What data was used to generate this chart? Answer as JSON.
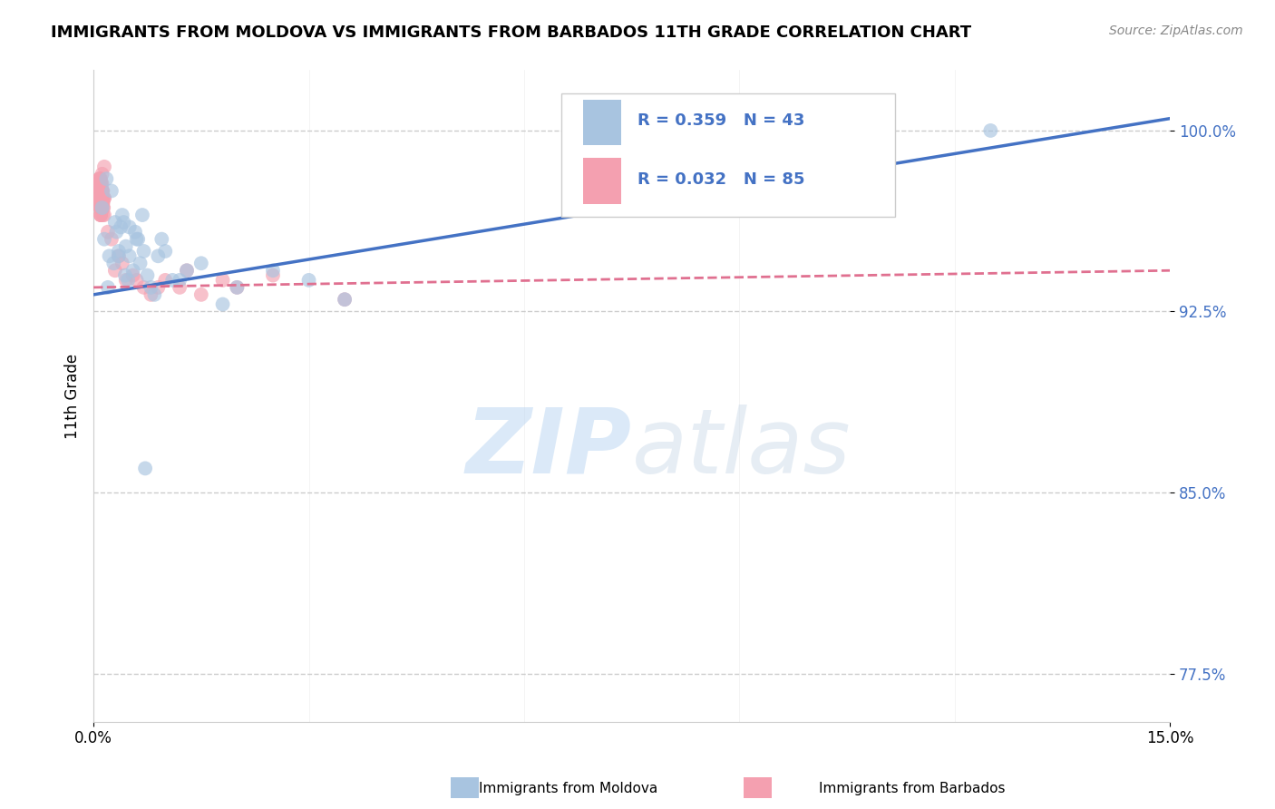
{
  "title": "IMMIGRANTS FROM MOLDOVA VS IMMIGRANTS FROM BARBADOS 11TH GRADE CORRELATION CHART",
  "source": "Source: ZipAtlas.com",
  "ylabel": "11th Grade",
  "xlim": [
    0.0,
    15.0
  ],
  "ylim": [
    75.5,
    102.5
  ],
  "yticks": [
    77.5,
    85.0,
    92.5,
    100.0
  ],
  "ytick_labels": [
    "77.5%",
    "85.0%",
    "92.5%",
    "100.0%"
  ],
  "color_moldova": "#a8c4e0",
  "color_barbados": "#f4a0b0",
  "color_moldova_line": "#4472c4",
  "color_barbados_line": "#e07090",
  "color_legend_text": "#4472c4",
  "moldova_x": [
    0.15,
    0.25,
    0.18,
    0.3,
    0.22,
    0.35,
    0.12,
    0.28,
    0.32,
    0.2,
    0.4,
    0.45,
    0.5,
    0.38,
    0.55,
    0.6,
    0.48,
    0.65,
    0.7,
    0.42,
    0.75,
    0.58,
    0.85,
    0.9,
    0.68,
    1.0,
    1.2,
    1.5,
    1.8,
    0.95,
    2.0,
    2.5,
    3.5,
    0.35,
    0.5,
    0.8,
    1.3,
    3.0,
    12.5,
    0.62,
    0.44,
    1.1,
    0.72
  ],
  "moldova_y": [
    95.5,
    97.5,
    98.0,
    96.2,
    94.8,
    95.0,
    96.8,
    94.5,
    95.8,
    93.5,
    96.5,
    95.2,
    94.8,
    96.0,
    94.2,
    95.5,
    93.8,
    94.5,
    95.0,
    96.2,
    94.0,
    95.8,
    93.2,
    94.8,
    96.5,
    95.0,
    93.8,
    94.5,
    92.8,
    95.5,
    93.5,
    94.2,
    93.0,
    94.8,
    96.0,
    93.5,
    94.2,
    93.8,
    100.0,
    95.5,
    94.0,
    93.8,
    86.0
  ],
  "barbados_x": [
    0.08,
    0.12,
    0.1,
    0.15,
    0.09,
    0.11,
    0.13,
    0.1,
    0.08,
    0.12,
    0.14,
    0.1,
    0.11,
    0.09,
    0.12,
    0.1,
    0.08,
    0.13,
    0.1,
    0.12,
    0.15,
    0.1,
    0.09,
    0.11,
    0.1,
    0.12,
    0.08,
    0.13,
    0.1,
    0.11,
    0.09,
    0.1,
    0.12,
    0.08,
    0.11,
    0.1,
    0.13,
    0.09,
    0.12,
    0.1,
    0.11,
    0.08,
    0.13,
    0.12,
    0.1,
    0.11,
    0.09,
    0.12,
    0.1,
    0.11,
    0.13,
    0.1,
    0.08,
    0.12,
    0.11,
    0.1,
    0.15,
    0.09,
    0.12,
    0.1,
    0.08,
    0.13,
    0.11,
    0.1,
    0.15,
    0.2,
    0.25,
    0.35,
    0.4,
    0.55,
    0.6,
    0.7,
    0.8,
    1.0,
    1.2,
    1.5,
    1.8,
    2.0,
    2.5,
    0.3,
    0.45,
    0.9,
    1.3,
    3.5
  ],
  "barbados_y": [
    97.5,
    98.2,
    97.0,
    98.5,
    96.8,
    97.2,
    96.5,
    97.8,
    98.0,
    97.0,
    96.8,
    97.5,
    97.2,
    98.0,
    97.5,
    96.5,
    97.8,
    97.0,
    96.8,
    97.5,
    97.2,
    98.0,
    97.5,
    96.8,
    97.2,
    97.5,
    98.0,
    97.0,
    96.8,
    97.5,
    97.2,
    96.5,
    97.8,
    97.0,
    97.5,
    96.8,
    97.2,
    97.5,
    97.0,
    96.5,
    97.8,
    97.2,
    97.5,
    97.0,
    96.8,
    97.5,
    97.2,
    97.0,
    97.5,
    96.8,
    97.2,
    97.5,
    97.8,
    97.0,
    96.8,
    97.5,
    97.2,
    97.8,
    97.0,
    97.5,
    97.2,
    96.8,
    97.5,
    97.0,
    96.5,
    95.8,
    95.5,
    94.8,
    94.5,
    94.0,
    93.8,
    93.5,
    93.2,
    93.8,
    93.5,
    93.2,
    93.8,
    93.5,
    94.0,
    94.2,
    93.8,
    93.5,
    94.2,
    93.0
  ],
  "trend_moldova_x0": 0.0,
  "trend_moldova_y0": 93.2,
  "trend_moldova_x1": 15.0,
  "trend_moldova_y1": 100.5,
  "trend_barbados_x0": 0.0,
  "trend_barbados_y0": 93.5,
  "trend_barbados_x1": 15.0,
  "trend_barbados_y1": 94.2
}
